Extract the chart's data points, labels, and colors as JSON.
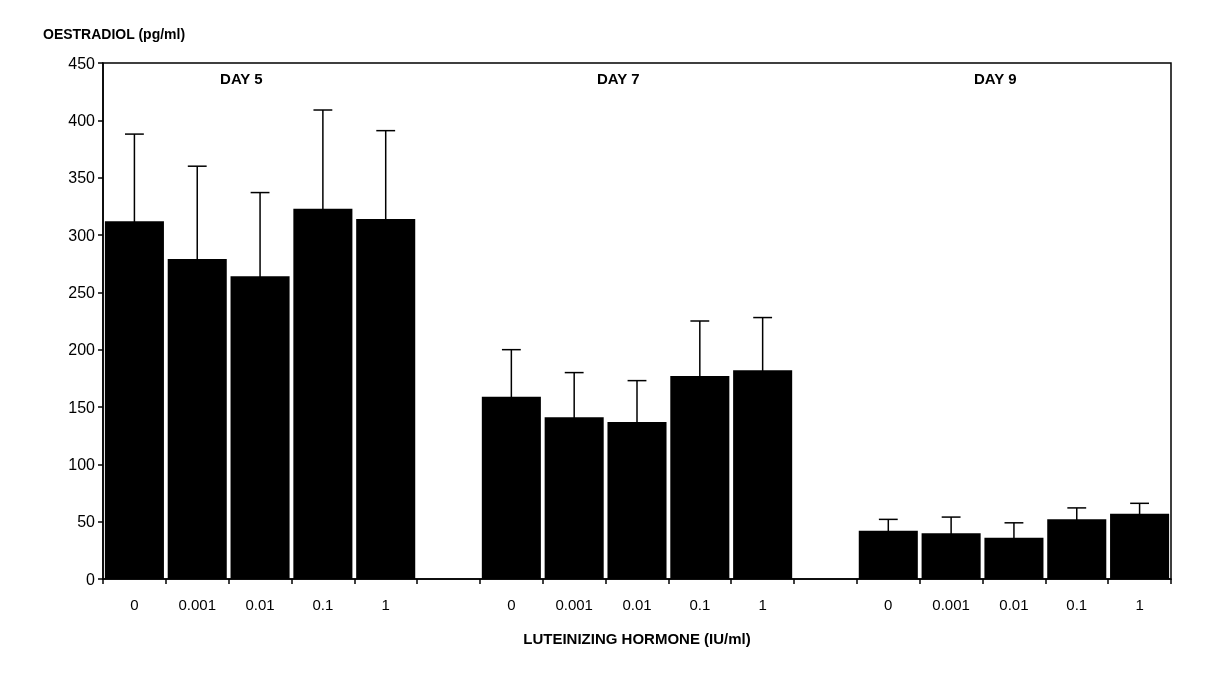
{
  "chart_data": {
    "type": "bar",
    "ylabel": "OESTRADIOL (pg/ml)",
    "xlabel": "LUTEINIZING HORMONE (IU/ml)",
    "categories": [
      "0",
      "0.001",
      "0.01",
      "0.1",
      "1",
      null,
      "0",
      "0.001",
      "0.01",
      "0.1",
      "1",
      null,
      "0",
      "0.001",
      "0.01",
      "0.1",
      "1"
    ],
    "values": [
      312,
      279,
      264,
      323,
      314,
      null,
      159,
      141,
      137,
      177,
      182,
      null,
      42,
      40,
      36,
      52,
      57
    ],
    "errors": [
      76,
      81,
      73,
      86,
      77,
      null,
      41,
      39,
      36,
      48,
      46,
      null,
      10,
      14,
      13,
      10,
      9
    ],
    "color": "#000000",
    "ylim": [
      0,
      450
    ],
    "yticks": [
      0,
      50,
      100,
      150,
      200,
      250,
      300,
      350,
      400,
      450
    ],
    "annotations": [
      "DAY 5",
      "DAY 7",
      "DAY 9"
    ],
    "grid": false
  }
}
